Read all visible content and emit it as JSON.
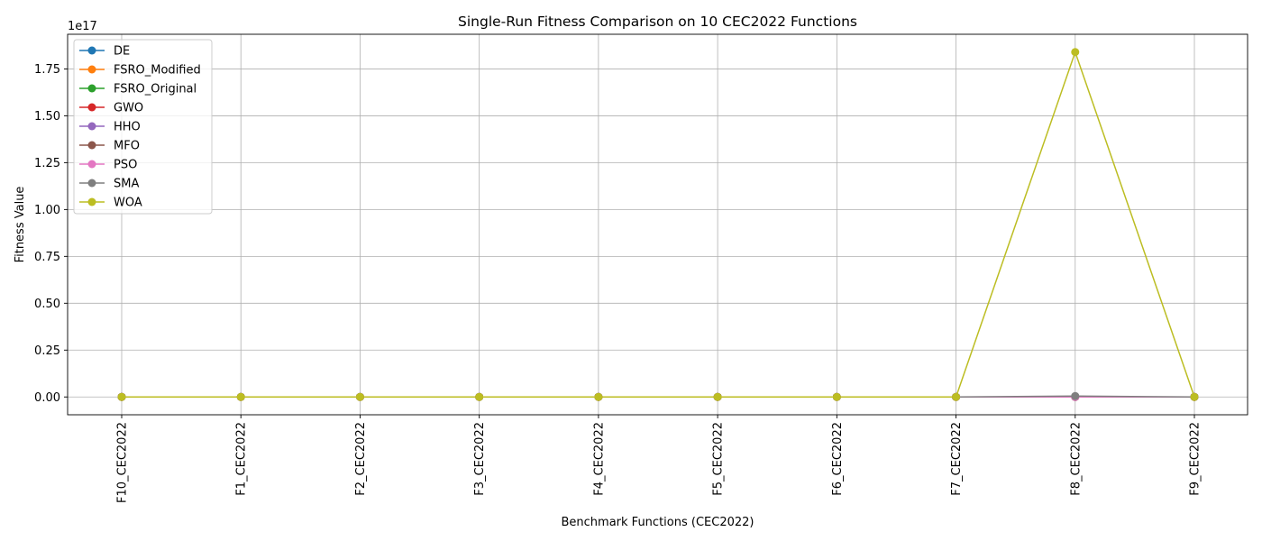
{
  "chart_data": {
    "type": "line",
    "title": "Single-Run Fitness Comparison on 10 CEC2022 Functions",
    "xlabel": "Benchmark Functions (CEC2022)",
    "ylabel": "Fitness Value",
    "y_offset_text": "1e17",
    "y_scale_factor": 1e+17,
    "categories": [
      "F10_CEC2022",
      "F1_CEC2022",
      "F2_CEC2022",
      "F3_CEC2022",
      "F4_CEC2022",
      "F5_CEC2022",
      "F6_CEC2022",
      "F7_CEC2022",
      "F8_CEC2022",
      "F9_CEC2022"
    ],
    "ylim": [
      -9500000000000000.0,
      1.935e+17
    ],
    "yticks": [
      0,
      2.5e+16,
      5e+16,
      7.5e+16,
      1e+17,
      1.25e+17,
      1.5e+17,
      1.75e+17
    ],
    "ytick_labels": [
      "0.00",
      "0.25",
      "0.50",
      "0.75",
      "1.00",
      "1.25",
      "1.50",
      "1.75"
    ],
    "grid": true,
    "legend_position": "top-left",
    "series": [
      {
        "name": "DE",
        "color": "#1f77b4",
        "values": [
          0,
          0,
          0,
          0,
          0,
          0,
          0,
          0,
          0,
          0
        ]
      },
      {
        "name": "FSRO_Modified",
        "color": "#ff7f0e",
        "values": [
          0,
          0,
          0,
          0,
          0,
          0,
          0,
          0,
          0,
          0
        ]
      },
      {
        "name": "FSRO_Original",
        "color": "#2ca02c",
        "values": [
          0,
          0,
          0,
          0,
          0,
          0,
          0,
          0,
          0,
          0
        ]
      },
      {
        "name": "GWO",
        "color": "#d62728",
        "values": [
          0,
          0,
          0,
          0,
          0,
          0,
          0,
          0,
          0,
          0
        ]
      },
      {
        "name": "HHO",
        "color": "#9467bd",
        "values": [
          0,
          0,
          0,
          0,
          0,
          0,
          0,
          0,
          0,
          0
        ]
      },
      {
        "name": "MFO",
        "color": "#8c564b",
        "values": [
          0,
          0,
          0,
          0,
          0,
          0,
          0,
          0,
          0,
          0
        ]
      },
      {
        "name": "PSO",
        "color": "#e377c2",
        "values": [
          0,
          0,
          0,
          0,
          0,
          0,
          0,
          0,
          0,
          0
        ]
      },
      {
        "name": "SMA",
        "color": "#7f7f7f",
        "values": [
          0,
          0,
          0,
          0,
          0,
          0,
          0,
          0,
          500000000000000.0,
          0
        ]
      },
      {
        "name": "WOA",
        "color": "#bcbd22",
        "values": [
          0,
          0,
          0,
          0,
          0,
          0,
          0,
          0,
          1.84e+17,
          0
        ]
      }
    ]
  }
}
